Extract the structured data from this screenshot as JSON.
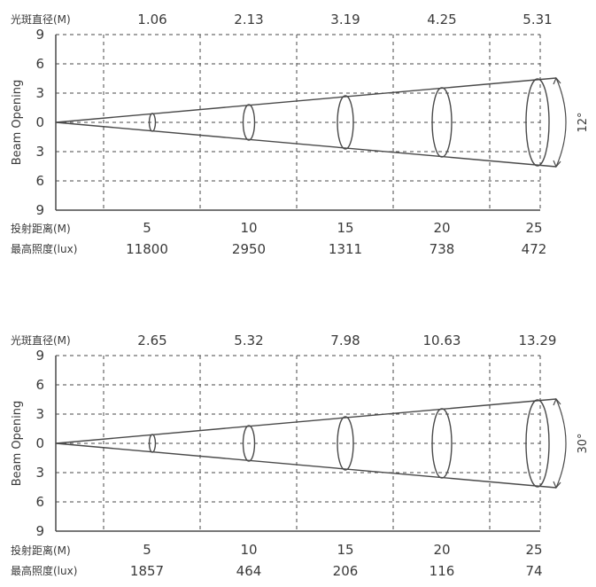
{
  "chart_data": [
    {
      "type": "beam",
      "row_labels": {
        "diameter": "光斑直径(M)",
        "distance": "投射距离(M)",
        "illuminance": "最高照度(lux)"
      },
      "ylabel": "Beam Opening",
      "angle_label": "12°",
      "y_tick_labels": [
        "9",
        "6",
        "3",
        "0",
        "3",
        "6",
        "9"
      ],
      "distances": [
        "5",
        "10",
        "15",
        "20",
        "25"
      ],
      "diameters": [
        "1.06",
        "2.13",
        "3.19",
        "4.25",
        "5.31"
      ],
      "illuminance": [
        "11800",
        "2950",
        "1311",
        "738",
        "472"
      ]
    },
    {
      "type": "beam",
      "row_labels": {
        "diameter": "光斑直径(M)",
        "distance": "投射距离(M)",
        "illuminance": "最高照度(lux)"
      },
      "ylabel": "Beam Opening",
      "angle_label": "30°",
      "y_tick_labels": [
        "9",
        "6",
        "3",
        "0",
        "3",
        "6",
        "9"
      ],
      "distances": [
        "5",
        "10",
        "15",
        "20",
        "25"
      ],
      "diameters": [
        "2.65",
        "5.32",
        "7.98",
        "10.63",
        "13.29"
      ],
      "illuminance": [
        "1857",
        "464",
        "206",
        "116",
        "74"
      ]
    }
  ]
}
